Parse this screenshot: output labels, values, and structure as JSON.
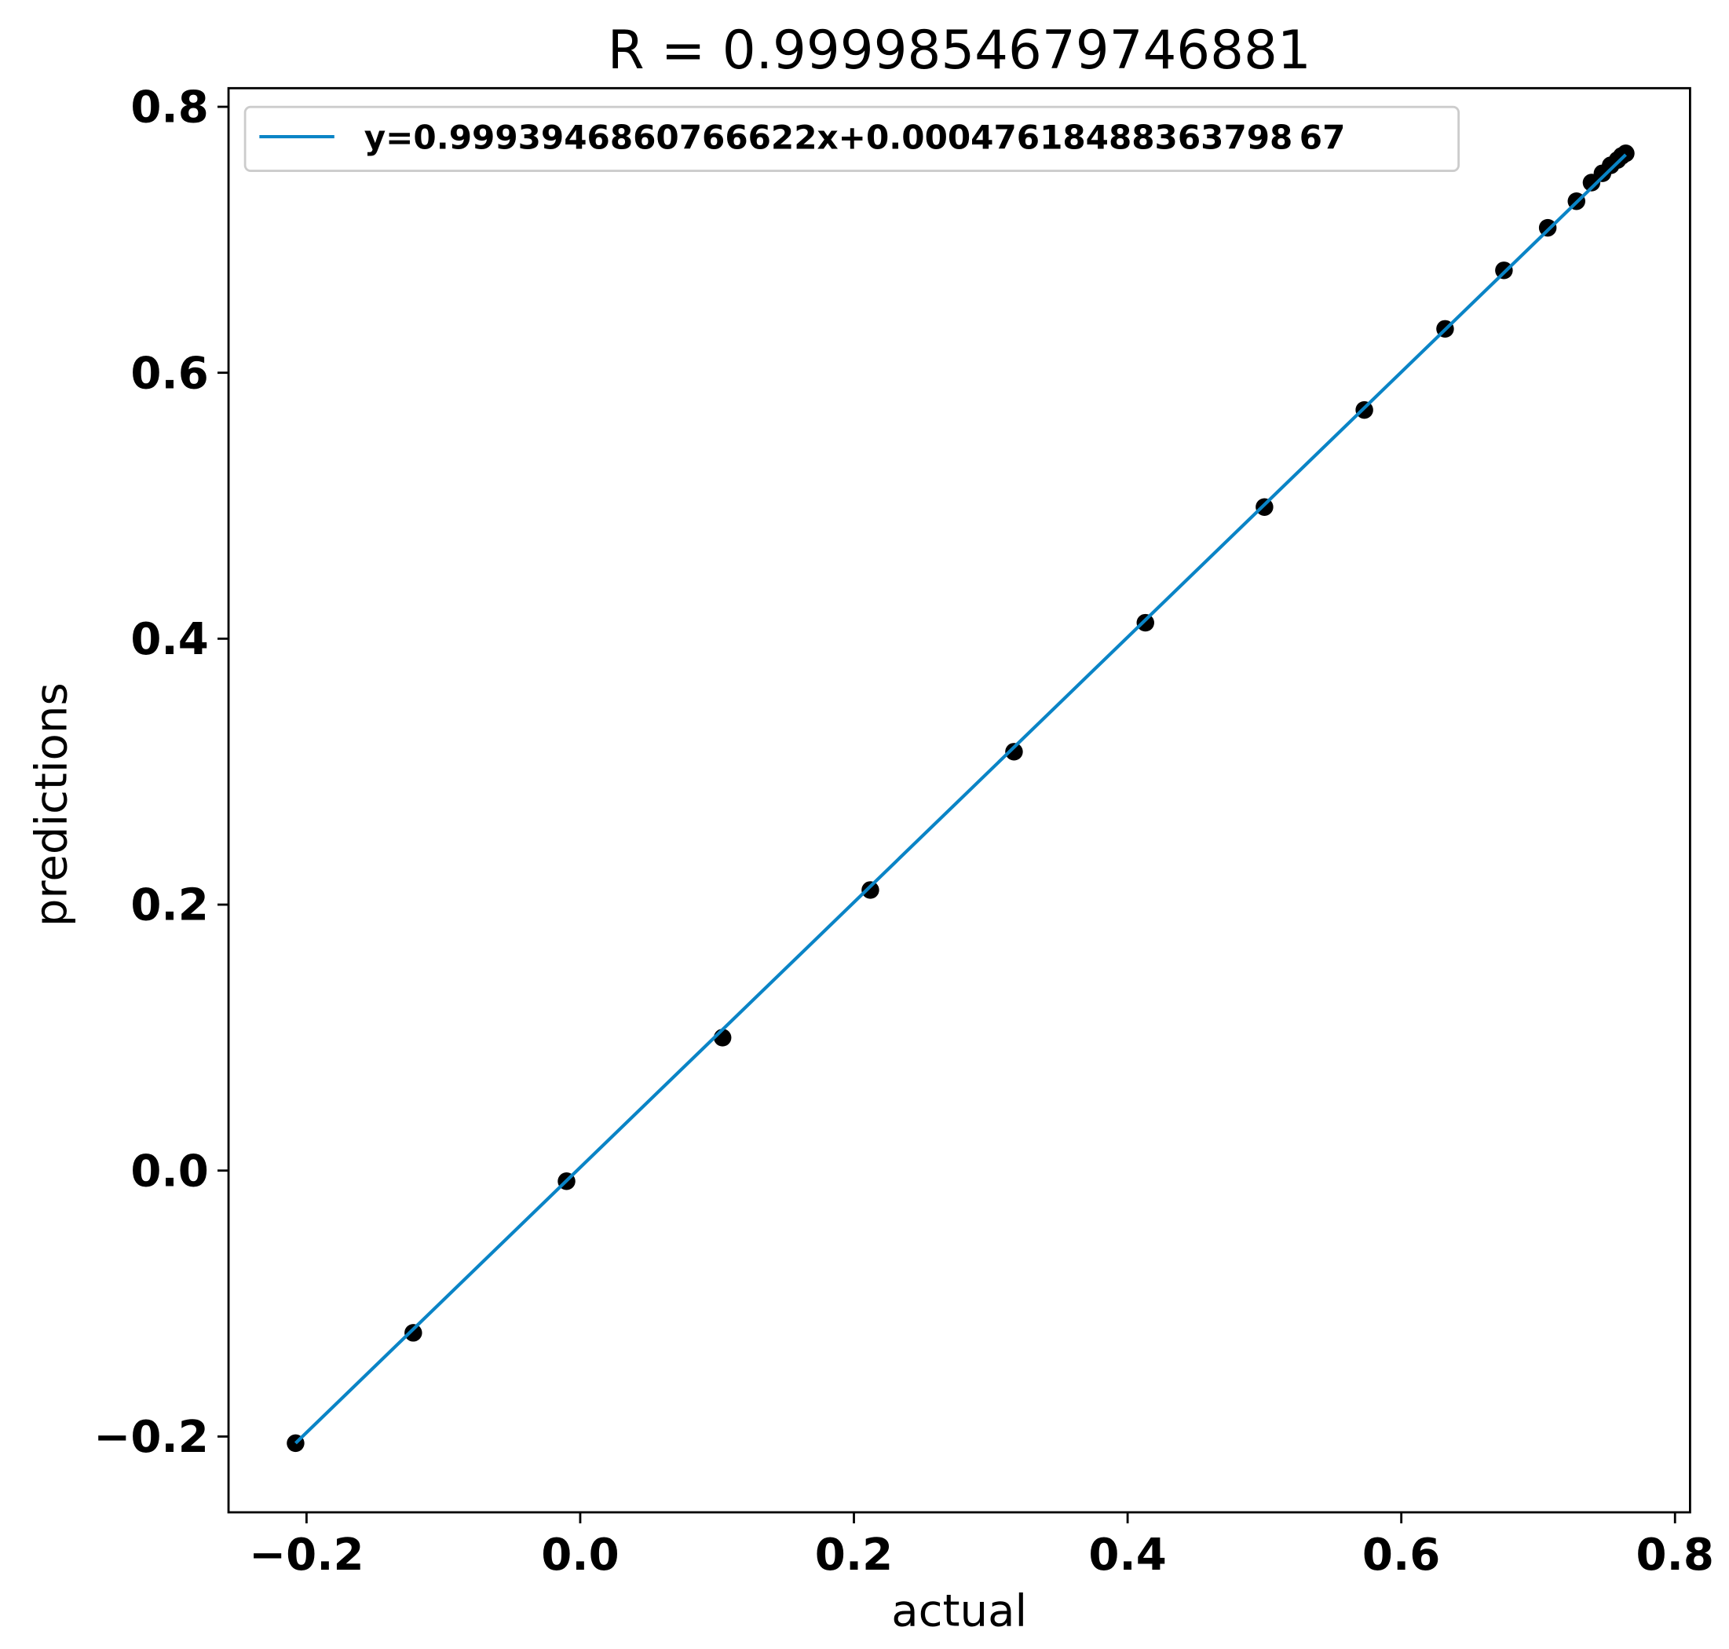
{
  "chart_data": {
    "type": "scatter",
    "title": "R = 0.9999854679746881",
    "x_label": "actual",
    "y_label": "predictions",
    "x": [
      -0.208,
      -0.122,
      -0.01,
      0.104,
      0.212,
      0.317,
      0.413,
      0.5,
      0.573,
      0.632,
      0.675,
      0.707,
      0.728,
      0.739,
      0.747,
      0.753,
      0.758,
      0.761,
      0.764
    ],
    "values": [
      -0.205,
      -0.122,
      -0.008,
      0.1,
      0.211,
      0.315,
      0.412,
      0.499,
      0.572,
      0.633,
      0.677,
      0.709,
      0.729,
      0.743,
      0.75,
      0.756,
      0.76,
      0.763,
      0.765
    ],
    "color": "#000000",
    "fit_line": {
      "name": "y=0.9993946860766622x+0.00047618488363798 67",
      "color": "#0a84c6",
      "x": [
        -0.208,
        0.764
      ],
      "values": [
        -0.205,
        0.764
      ]
    },
    "xlim": [
      -0.257,
      0.811
    ],
    "ylim": [
      -0.257,
      0.814
    ],
    "xticks": [
      {
        "value": -0.2,
        "label": "−0.2"
      },
      {
        "value": 0,
        "label": "0.0"
      },
      0.2,
      0.4,
      0.6,
      0.8
    ],
    "yticks": [
      {
        "value": -0.2,
        "label": "−0.2"
      },
      {
        "value": 0,
        "label": "0.0"
      },
      0.2,
      0.4,
      0.6,
      0.8
    ],
    "legend": "upper left",
    "grid": false
  }
}
